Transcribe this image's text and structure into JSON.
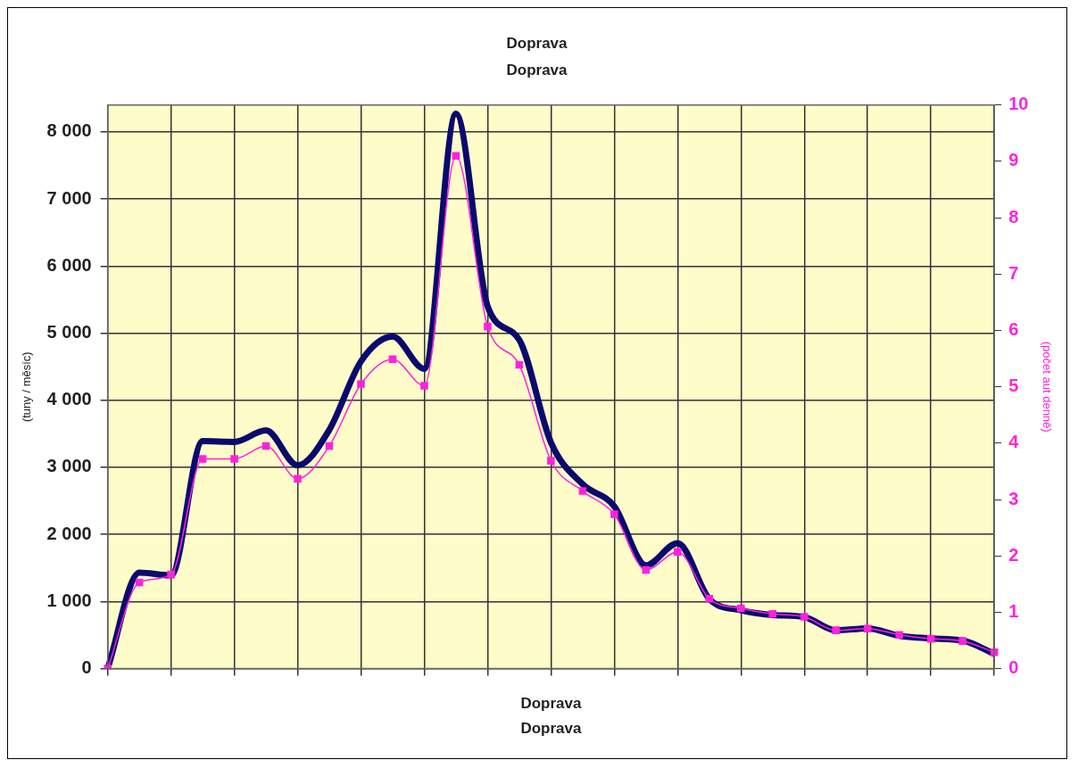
{
  "chart_data": {
    "type": "line",
    "title": "Doprava",
    "subtitle": "Doprava",
    "xlabel": "Doprava",
    "ylabel": "(tuny / měsíc)",
    "y2label": "(počet aut denně)",
    "annotations": [
      "Doprava"
    ],
    "categories": [
      null,
      null,
      null,
      null,
      null,
      null,
      null,
      null,
      null,
      null,
      null,
      null,
      null,
      null,
      null,
      null,
      null,
      null,
      null,
      null,
      null,
      null,
      null,
      null,
      null,
      null,
      null,
      null,
      null
    ],
    "series": [
      {
        "color": "#0a0a6e",
        "marker": "none",
        "values": [
          0,
          1430,
          1390,
          3390,
          3380,
          3550,
          3030,
          3560,
          4580,
          4950,
          4470,
          8270,
          5400,
          4900,
          3370,
          2750,
          2420,
          1540,
          1870,
          1040,
          870,
          800,
          770,
          570,
          600,
          490,
          450,
          420,
          220
        ]
      },
      {
        "color": "#ff22dd",
        "marker": "square",
        "axis": "y2",
        "values": [
          0,
          1.53,
          1.67,
          3.72,
          3.72,
          3.95,
          3.37,
          3.95,
          5.05,
          5.49,
          5.02,
          9.1,
          6.07,
          5.39,
          3.69,
          3.15,
          2.74,
          1.75,
          2.07,
          1.24,
          1.07,
          0.97,
          0.92,
          0.68,
          0.71,
          0.6,
          0.53,
          0.49,
          0.29
        ]
      }
    ],
    "ylim": [
      0,
      8400
    ],
    "yticks": [
      0,
      {
        "value": 1000,
        "label": "1 000"
      },
      {
        "value": 2000,
        "label": "2 000"
      },
      {
        "value": 3000,
        "label": "3 000"
      },
      {
        "value": 4000,
        "label": "4 000"
      },
      {
        "value": 5000,
        "label": "5 000"
      },
      {
        "value": 6000,
        "label": "6 000"
      },
      {
        "value": 7000,
        "label": "7 000"
      },
      {
        "value": 8000,
        "label": "8 000"
      }
    ],
    "y2lim": [
      0,
      10
    ],
    "y2ticks": [
      0,
      1,
      2,
      3,
      4,
      5,
      6,
      7,
      8,
      9,
      10
    ],
    "grid": true,
    "legend": false
  }
}
